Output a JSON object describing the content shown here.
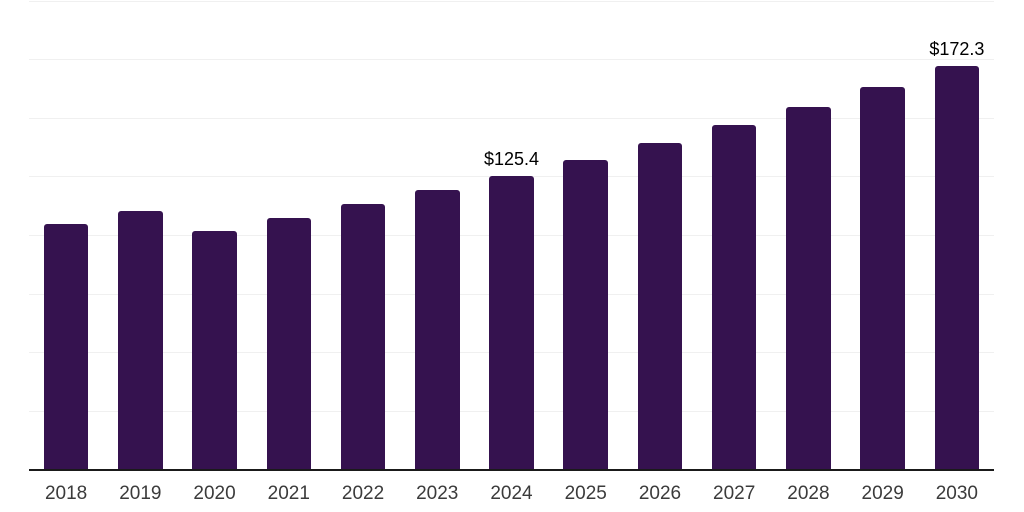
{
  "chart_data": {
    "type": "bar",
    "title": "",
    "xlabel": "",
    "ylabel": "",
    "categories": [
      "2018",
      "2019",
      "2020",
      "2021",
      "2022",
      "2023",
      "2024",
      "2025",
      "2026",
      "2027",
      "2028",
      "2029",
      "2030"
    ],
    "values": [
      104.8,
      110.6,
      101.9,
      107.6,
      113.6,
      119.3,
      125.4,
      132.2,
      139.4,
      147.0,
      155.0,
      163.4,
      172.3
    ],
    "annotations": [
      {
        "category": "2024",
        "text": "$125.4"
      },
      {
        "category": "2030",
        "text": "$172.3"
      }
    ],
    "ylim": [
      0,
      200
    ],
    "gridline_step": 25,
    "grid": "horizontal",
    "legend": "none",
    "y_axis_tick_labels_visible": false,
    "bar_color": "#35124F",
    "axis_color": "#1a1a1a",
    "gridline_color": "#f0f0f0",
    "tick_label_color": "#3b3b3b",
    "data_label_color": "#000000"
  }
}
